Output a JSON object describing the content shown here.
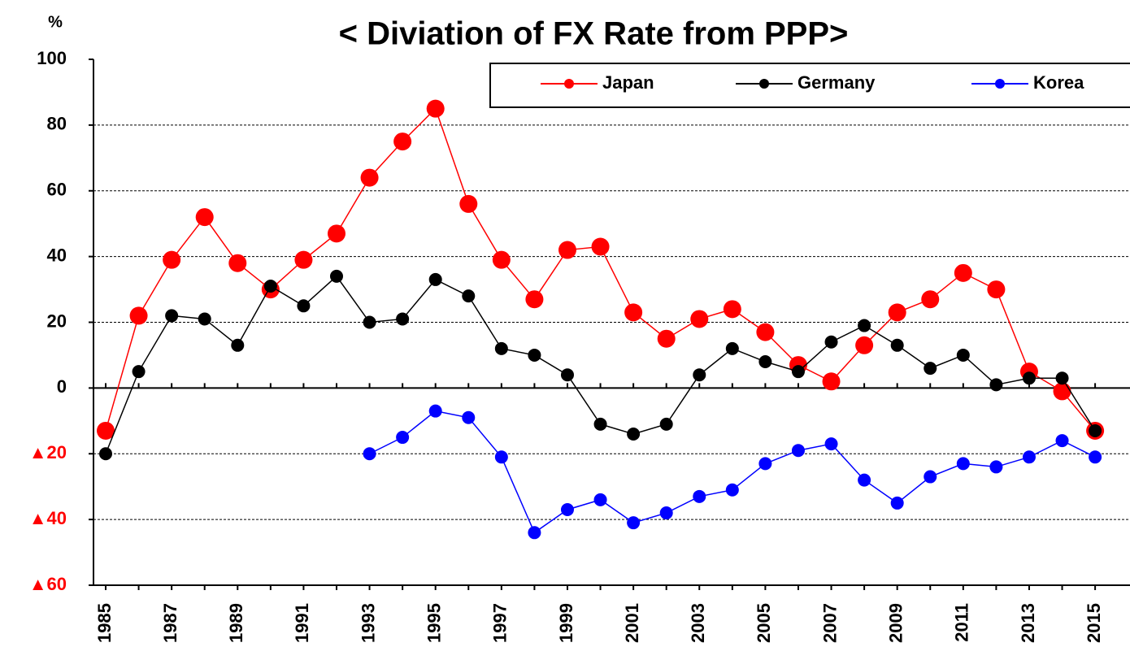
{
  "chart_data": {
    "type": "line",
    "title": "< Diviation of FX Rate from PPP>",
    "y_label": "%",
    "categories": [
      "1985",
      null,
      "1987",
      null,
      "1989",
      null,
      "1991",
      null,
      "1993",
      null,
      "1995",
      null,
      "1997",
      null,
      "1999",
      null,
      "2001",
      null,
      "2003",
      null,
      "2005",
      null,
      "2007",
      null,
      "2009",
      null,
      "2011",
      null,
      "2013",
      null,
      "2015"
    ],
    "series": [
      {
        "name": "Japan",
        "color": "#ff0000",
        "values": [
          -13,
          22,
          39,
          52,
          38,
          30,
          39,
          47,
          64,
          75,
          85,
          56,
          39,
          27,
          42,
          43,
          23,
          15,
          21,
          24,
          17,
          7,
          2,
          13,
          23,
          27,
          35,
          30,
          5,
          -1,
          -13
        ]
      },
      {
        "name": "Germany",
        "color": "#000000",
        "values": [
          -20,
          5,
          22,
          21,
          13,
          31,
          25,
          34,
          20,
          21,
          33,
          28,
          12,
          10,
          4,
          -11,
          -14,
          -11,
          4,
          12,
          8,
          5,
          14,
          19,
          13,
          6,
          10,
          1,
          3,
          3,
          -13
        ]
      },
      {
        "name": "Korea",
        "color": "#0000ff",
        "values": [
          null,
          null,
          null,
          null,
          null,
          null,
          null,
          null,
          -20,
          -15,
          -7,
          -9,
          -21,
          -44,
          -37,
          -34,
          -41,
          -38,
          -33,
          -31,
          -23,
          -19,
          -17,
          -28,
          -35,
          -27,
          -23,
          -24,
          -21,
          -16,
          -21
        ]
      }
    ],
    "ylim": [
      -60,
      100
    ],
    "yticks": [
      {
        "value": -60,
        "label": "▲60"
      },
      {
        "value": -40,
        "label": "▲40"
      },
      {
        "value": -20,
        "label": "▲20"
      },
      0,
      20,
      40,
      60,
      80,
      100
    ],
    "grid": true
  }
}
